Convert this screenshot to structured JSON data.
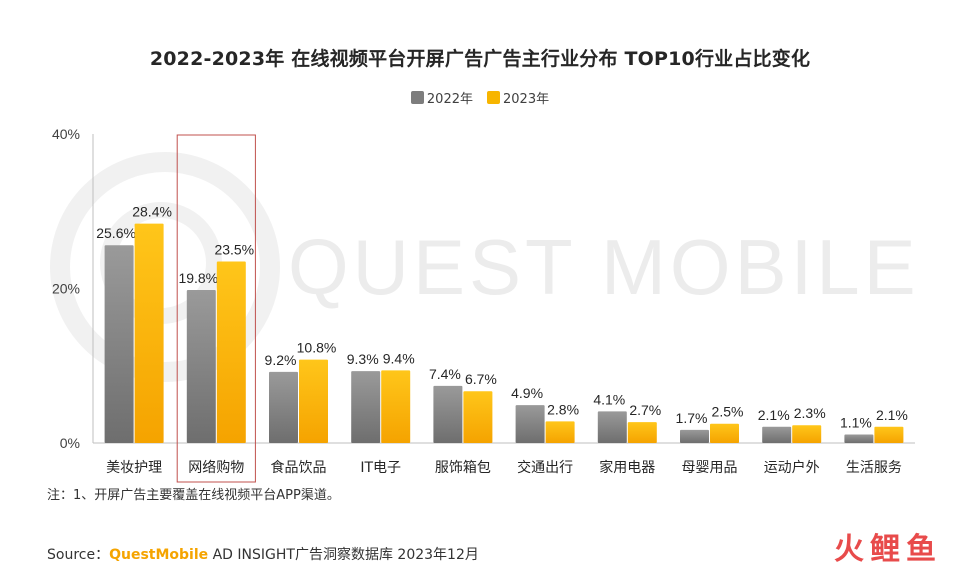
{
  "title": "2022-2023年 在线视频平台开屏广告广告主行业分布 TOP10行业占比变化",
  "legend": [
    {
      "label": "2022年",
      "color": "#7d7d7d"
    },
    {
      "label": "2023年",
      "color": "#f7b500"
    }
  ],
  "watermark": "QUEST MOBILE",
  "note": "注：1、开屏广告主要覆盖在线视频平台APP渠道。",
  "source": {
    "prefix": "Source：",
    "brand": "QuestMobile",
    "rest": " AD INSIGHT广告洞察数据库 2023年12月"
  },
  "corner_logo": "火鲤鱼",
  "colors": {
    "series2022": "#7d7d7d",
    "series2023": "#f7b500",
    "highlight_box": "#c0504d"
  },
  "chart_data": {
    "type": "bar",
    "categories": [
      "美妆护理",
      "网络购物",
      "食品饮品",
      "IT电子",
      "服饰箱包",
      "交通出行",
      "家用电器",
      "母婴用品",
      "运动户外",
      "生活服务"
    ],
    "series": [
      {
        "name": "2022年",
        "values": [
          25.6,
          19.8,
          9.2,
          9.3,
          7.4,
          4.9,
          4.1,
          1.7,
          2.1,
          1.1
        ],
        "labels": [
          "25.6%",
          "19.8%",
          "9.2%",
          "9.3%",
          "7.4%",
          "4.9%",
          "4.1%",
          "1.7%",
          "2.1%",
          "1.1%"
        ]
      },
      {
        "name": "2023年",
        "values": [
          28.4,
          23.5,
          10.8,
          9.4,
          6.7,
          2.8,
          2.7,
          2.5,
          2.3,
          2.1
        ],
        "labels": [
          "28.4%",
          "23.5%",
          "10.8%",
          "9.4%",
          "6.7%",
          "2.8%",
          "2.7%",
          "2.5%",
          "2.3%",
          "2.1%"
        ]
      }
    ],
    "ylim": [
      0,
      40
    ],
    "yticks": [
      0,
      20,
      40
    ],
    "ytick_labels": [
      "0%",
      "20%",
      "40%"
    ],
    "highlight_category": "网络购物",
    "grid": false,
    "legend_position": "top-center"
  }
}
